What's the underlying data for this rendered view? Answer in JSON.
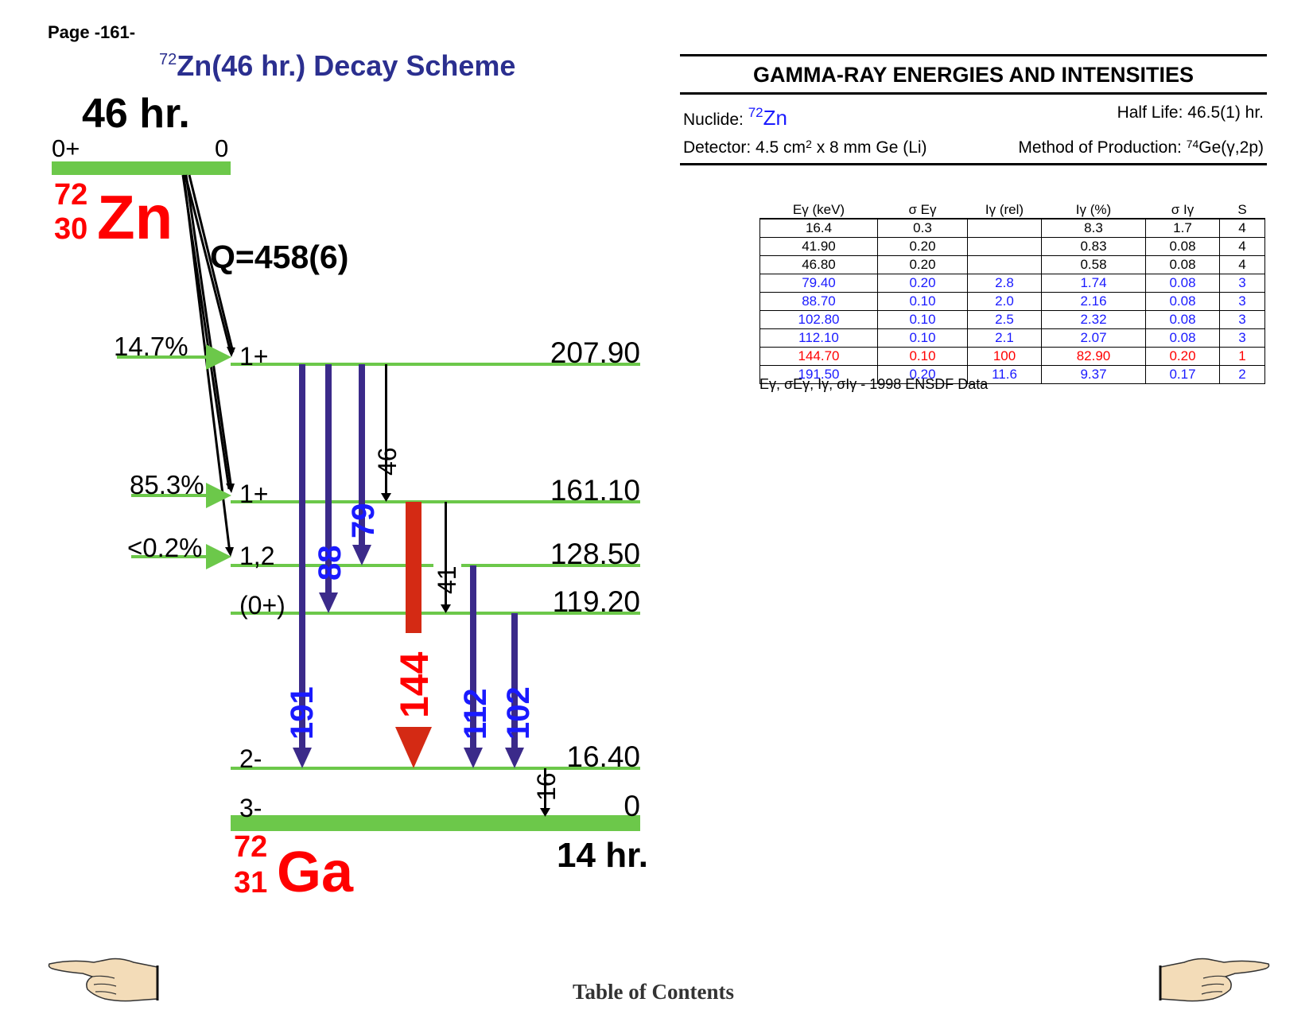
{
  "page_label": "Page -161-",
  "title": {
    "mass_number": "72",
    "text": "Zn(46 hr.) Decay Scheme"
  },
  "parent": {
    "half_life": "46 hr.",
    "spin": "0+",
    "energy": "0",
    "mass": "72",
    "z": "30",
    "symbol": "Zn",
    "q_value": "Q=458(6)"
  },
  "daughter": {
    "half_life": "14 hr.",
    "mass": "72",
    "z": "31",
    "symbol": "Ga"
  },
  "levels": [
    {
      "spin": "1+",
      "energy": "207.90",
      "feeding": "14.7%"
    },
    {
      "spin": "1+",
      "energy": "161.10",
      "feeding": "85.3%"
    },
    {
      "spin": "1,2",
      "energy": "128.50",
      "feeding": "<0.2%"
    },
    {
      "spin": "(0+)",
      "energy": "119.20",
      "feeding": ""
    },
    {
      "spin": "2-",
      "energy": "16.40",
      "feeding": ""
    },
    {
      "spin": "3-",
      "energy": "0",
      "feeding": ""
    }
  ],
  "transitions": [
    {
      "label": "191",
      "color": "#1a1aff"
    },
    {
      "label": "88",
      "color": "#1a1aff"
    },
    {
      "label": "79",
      "color": "#1a1aff"
    },
    {
      "label": "46",
      "color": "#000000"
    },
    {
      "label": "144",
      "color": "#ff0000"
    },
    {
      "label": "41",
      "color": "#000000"
    },
    {
      "label": "112",
      "color": "#1a1aff"
    },
    {
      "label": "102",
      "color": "#1a1aff"
    },
    {
      "label": "16",
      "color": "#000000"
    }
  ],
  "colors": {
    "level_line": "#6cc84a",
    "gamma_arrow": "#3b2a8a",
    "strong_arrow": "#d42a14",
    "title": "#2b2f8f",
    "nuclide_red": "#ff0000"
  },
  "gamma_panel": {
    "title": "GAMMA-RAY ENERGIES AND INTENSITIES",
    "nuclide_label": "Nuclide:",
    "nuclide_mass": "72",
    "nuclide_symbol": "Zn",
    "half_life_label": "Half Life: 46.5(1) hr.",
    "detector_label": "Detector: 4.5 cm",
    "detector_exp": "2",
    "detector_rest": " x 8 mm Ge (Li)",
    "method_label": "Method of Production:",
    "method_mass": "74",
    "method_rest": "Ge(γ,2p)"
  },
  "table": {
    "headers": [
      "Eγ (keV)",
      "σ Eγ",
      "Iγ (rel)",
      "Iγ (%)",
      "σ Iγ",
      "S"
    ],
    "rows": [
      [
        "16.4",
        "0.3",
        "",
        "8.3",
        "1.7",
        "4"
      ],
      [
        "41.90",
        "0.20",
        "",
        "0.83",
        "0.08",
        "4"
      ],
      [
        "46.80",
        "0.20",
        "",
        "0.58",
        "0.08",
        "4"
      ],
      [
        "79.40",
        "0.20",
        "2.8",
        "1.74",
        "0.08",
        "3"
      ],
      [
        "88.70",
        "0.10",
        "2.0",
        "2.16",
        "0.08",
        "3"
      ],
      [
        "102.80",
        "0.10",
        "2.5",
        "2.32",
        "0.08",
        "3"
      ],
      [
        "112.10",
        "0.10",
        "2.1",
        "2.07",
        "0.08",
        "3"
      ],
      [
        "144.70",
        "0.10",
        "100",
        "82.90",
        "0.20",
        "1"
      ],
      [
        "191.50",
        "0.20",
        "11.6",
        "9.37",
        "0.17",
        "2"
      ]
    ],
    "row_colors": [
      "black",
      "black",
      "black",
      "blue",
      "blue",
      "blue",
      "blue",
      "red",
      "blue"
    ],
    "footnote": "Eγ, σEγ, Iγ, σIγ - 1998 ENSDF Data"
  },
  "footer": {
    "toc": "Table of Contents"
  }
}
